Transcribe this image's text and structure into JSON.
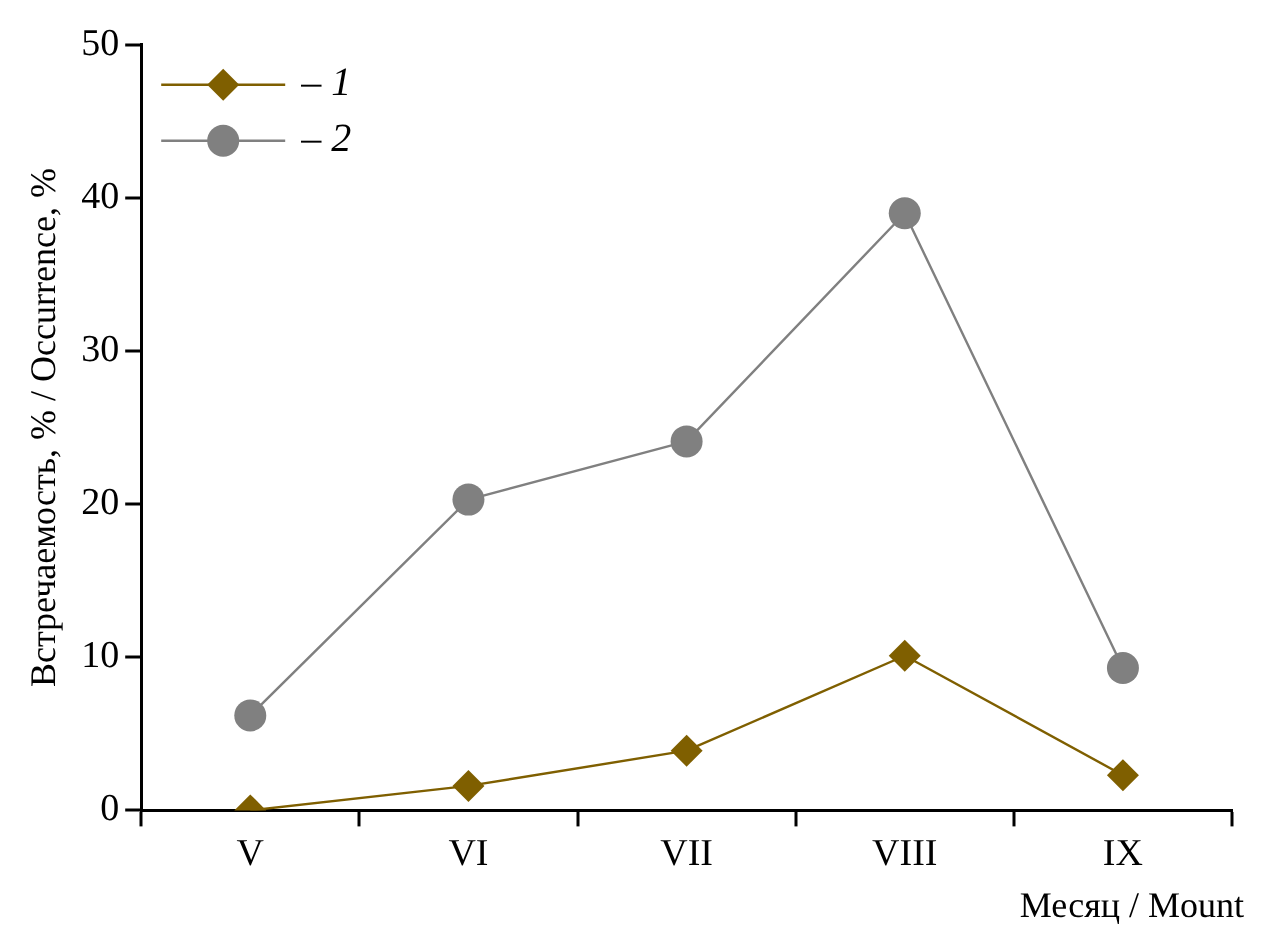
{
  "chart_data": {
    "type": "line",
    "xlabel": "Месяц / Mount",
    "ylabel": "Встречаемость, % / Occurrence, %",
    "categories": [
      "V",
      "VI",
      "VII",
      "VIII",
      "IX"
    ],
    "series": [
      {
        "name": "– 1",
        "color": "#7f5f00",
        "marker": "diamond",
        "values": [
          0,
          1.6,
          3.9,
          10.1,
          2.3
        ]
      },
      {
        "name": "– 2",
        "color": "#808080",
        "marker": "circle",
        "values": [
          6.2,
          20.3,
          24.1,
          39.0,
          9.3
        ]
      }
    ],
    "ylim": [
      0,
      50
    ],
    "yticks": [
      0,
      10,
      20,
      30,
      40,
      50
    ],
    "grid": false,
    "legend": "top left",
    "line_style": "solid"
  }
}
